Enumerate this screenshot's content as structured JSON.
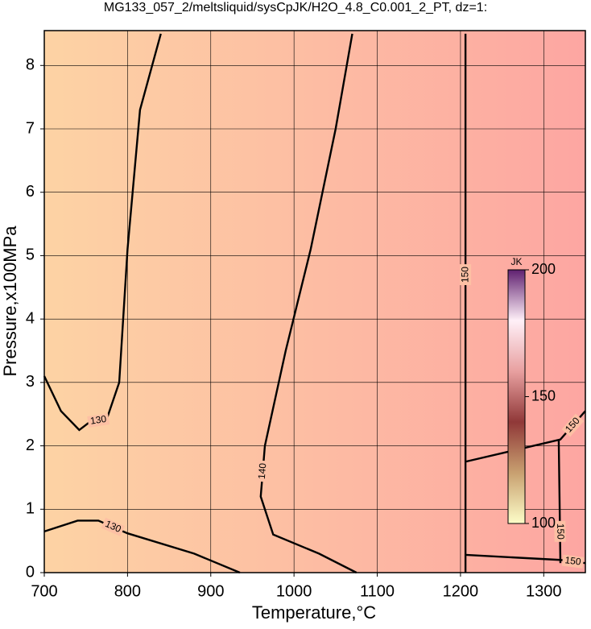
{
  "chart_data": {
    "type": "contour",
    "title": "MG133_057_2/meltsliquid/sysCpJK/H2O_4.8_C0.001_2_PT, dz=1:",
    "x_label": "Temperature,°C",
    "y_label": "Pressure,x100MPa",
    "xlim": [
      700,
      1350
    ],
    "ylim": [
      0,
      8.55
    ],
    "xticks": [
      700,
      800,
      900,
      1000,
      1100,
      1200,
      1300
    ],
    "yticks": [
      0,
      1,
      2,
      3,
      4,
      5,
      6,
      7,
      8
    ],
    "grid": true,
    "contours": [
      {
        "level": 130,
        "x": [
          840,
          815,
          800,
          790,
          775,
          755,
          742,
          720,
          700
        ],
        "y": [
          8.5,
          7.3,
          5.1,
          3.0,
          2.42,
          2.38,
          2.25,
          2.55,
          3.1
        ]
      },
      {
        "level": 130,
        "x": [
          700,
          740,
          765,
          800,
          880,
          935
        ],
        "y": [
          0.65,
          0.82,
          0.82,
          0.62,
          0.3,
          0.0
        ]
      },
      {
        "level": 140,
        "x": [
          1070,
          1050,
          1020,
          990,
          965,
          960,
          975,
          1030,
          1075
        ],
        "y": [
          8.5,
          7.0,
          5.1,
          3.5,
          2.0,
          1.2,
          0.6,
          0.3,
          0.0
        ]
      },
      {
        "level": 150,
        "x": [
          1206,
          1206,
          1206
        ],
        "y": [
          0.0,
          0.9,
          8.5
        ]
      },
      {
        "level": 150,
        "x": [
          1206,
          1320,
          1350
        ],
        "y": [
          1.75,
          2.1,
          2.55
        ]
      },
      {
        "level": 150,
        "x": [
          1206,
          1320,
          1350
        ],
        "y": [
          0.28,
          0.2,
          0.15
        ]
      },
      {
        "level": 150,
        "x": [
          1318,
          1319,
          1320
        ],
        "y": [
          2.1,
          1.15,
          0.15
        ]
      }
    ],
    "colorbar": {
      "label": "JK",
      "lim": [
        100,
        200
      ],
      "ticks": [
        100,
        150,
        200
      ],
      "colors": [
        "#fdfdc8",
        "#c8a070",
        "#903838",
        "#e8a0a0",
        "#fff0f8",
        "#602070"
      ]
    }
  }
}
